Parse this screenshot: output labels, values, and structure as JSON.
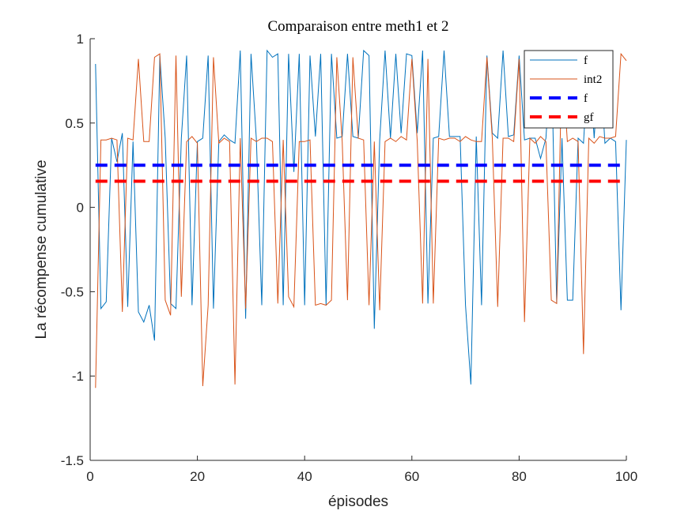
{
  "chart_data": {
    "type": "line",
    "title": "Comparaison entre meth1 et 2",
    "xlabel": "épisodes",
    "ylabel": "La récompense cumulative",
    "xlim": [
      0,
      100
    ],
    "ylim": [
      -1.5,
      1
    ],
    "xticks": [
      0,
      20,
      40,
      60,
      80,
      100
    ],
    "xtick_labels": [
      "0",
      "20",
      "40",
      "60",
      "80",
      "100"
    ],
    "yticks": [
      -1.5,
      -1,
      -0.5,
      0,
      0.5,
      1
    ],
    "ytick_labels": [
      "-1.5",
      "-1",
      "-0.5",
      "0",
      "0.5",
      "1"
    ],
    "grid": false,
    "legend_position": "top-right",
    "x": [
      1,
      2,
      3,
      4,
      5,
      6,
      7,
      8,
      9,
      10,
      11,
      12,
      13,
      14,
      15,
      16,
      17,
      18,
      19,
      20,
      21,
      22,
      23,
      24,
      25,
      26,
      27,
      28,
      29,
      30,
      31,
      32,
      33,
      34,
      35,
      36,
      37,
      38,
      39,
      40,
      41,
      42,
      43,
      44,
      45,
      46,
      47,
      48,
      49,
      50,
      51,
      52,
      53,
      54,
      55,
      56,
      57,
      58,
      59,
      60,
      61,
      62,
      63,
      64,
      65,
      66,
      67,
      68,
      69,
      70,
      71,
      72,
      73,
      74,
      75,
      76,
      77,
      78,
      79,
      80,
      81,
      82,
      83,
      84,
      85,
      86,
      87,
      88,
      89,
      90,
      91,
      92,
      93,
      94,
      95,
      96,
      97,
      98,
      99,
      100
    ],
    "series": [
      {
        "name": "f",
        "color": "#0072BD",
        "style": "solid",
        "values": [
          0.85,
          -0.6,
          -0.56,
          0.41,
          0.27,
          0.44,
          -0.59,
          0.39,
          -0.62,
          -0.68,
          -0.58,
          -0.79,
          0.9,
          0.41,
          -0.57,
          -0.6,
          0.41,
          0.9,
          -0.58,
          0.39,
          0.41,
          0.9,
          -0.6,
          0.39,
          0.43,
          0.4,
          0.38,
          0.93,
          -0.66,
          0.91,
          0.4,
          -0.58,
          0.93,
          0.89,
          0.91,
          -0.58,
          0.91,
          0.21,
          0.91,
          -0.58,
          0.9,
          0.42,
          0.91,
          -0.58,
          0.91,
          0.41,
          0.42,
          0.91,
          0.42,
          0.41,
          0.93,
          0.9,
          -0.72,
          0.4,
          0.93,
          0.41,
          0.91,
          0.44,
          0.91,
          0.9,
          0.44,
          0.93,
          -0.57,
          0.41,
          0.42,
          0.93,
          0.42,
          0.42,
          0.42,
          -0.58,
          -1.05,
          0.42,
          -0.58,
          0.9,
          0.44,
          0.41,
          0.93,
          0.42,
          0.43,
          0.9,
          0.4,
          0.41,
          0.41,
          0.29,
          0.41,
          0.93,
          -0.57,
          0.41,
          -0.55,
          -0.55,
          0.41,
          0.38,
          0.93,
          0.41,
          0.93,
          0.38,
          0.41,
          0.39,
          -0.61,
          0.4
        ]
      },
      {
        "name": "int2",
        "color": "#D95319",
        "style": "solid",
        "values": [
          -1.07,
          0.4,
          0.4,
          0.41,
          0.4,
          -0.62,
          0.41,
          0.4,
          0.88,
          0.39,
          0.39,
          0.89,
          0.91,
          -0.55,
          -0.64,
          0.9,
          -0.53,
          0.39,
          0.42,
          0.38,
          -1.06,
          -0.58,
          0.89,
          0.38,
          0.41,
          0.39,
          -1.05,
          0.41,
          -0.6,
          0.41,
          0.39,
          0.41,
          0.41,
          0.39,
          -0.57,
          0.4,
          -0.53,
          -0.59,
          0.39,
          0.39,
          0.4,
          -0.58,
          -0.57,
          -0.58,
          -0.55,
          0.89,
          0.39,
          -0.55,
          0.89,
          0.41,
          0.4,
          -0.58,
          0.39,
          -0.61,
          0.39,
          0.41,
          0.39,
          0.42,
          0.4,
          0.88,
          0.39,
          -0.57,
          0.88,
          -0.57,
          0.41,
          0.4,
          0.41,
          0.41,
          0.39,
          0.42,
          0.4,
          0.39,
          0.39,
          0.89,
          0.41,
          -0.59,
          0.41,
          0.41,
          0.39,
          0.88,
          -0.68,
          0.41,
          0.38,
          0.42,
          0.39,
          -0.55,
          -0.57,
          0.89,
          0.39,
          0.41,
          0.39,
          -0.87,
          0.41,
          0.38,
          0.42,
          0.41,
          0.41,
          0.42,
          0.91,
          0.87
        ]
      },
      {
        "name": "f",
        "color": "#0000FF",
        "style": "dashed",
        "values_constant": 0.25
      },
      {
        "name": "gf",
        "color": "#FF0000",
        "style": "dashed",
        "values_constant": 0.155
      }
    ]
  }
}
